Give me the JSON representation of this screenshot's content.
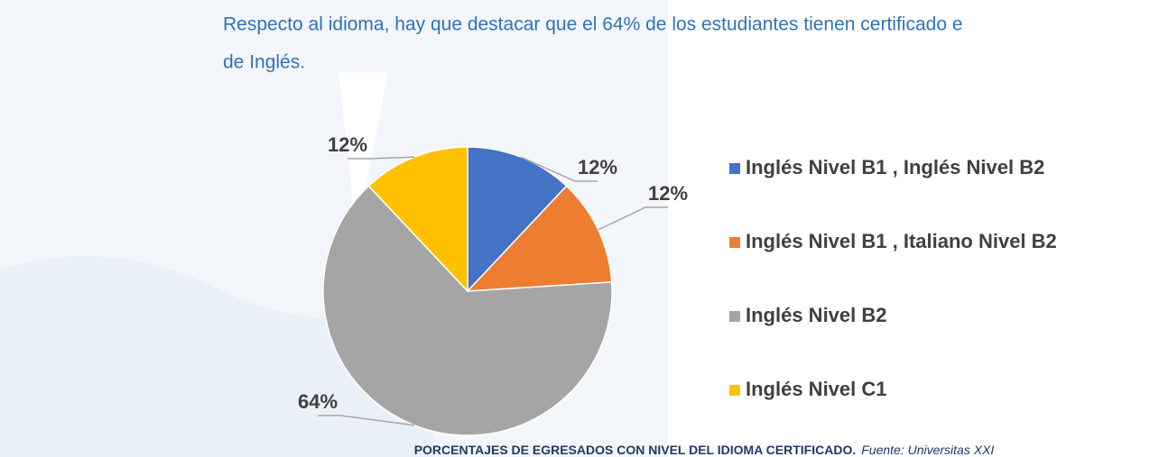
{
  "paragraph": {
    "lines": [
      "Respecto al idioma, hay que destacar que el 64% de los estudiantes tienen certificado e",
      "de Inglés."
    ]
  },
  "chart_data": {
    "type": "pie",
    "categories": [
      "Inglés Nivel B1 , Inglés Nivel B2",
      "Inglés Nivel B1 , Italiano Nivel B2",
      "Inglés Nivel B2",
      "Inglés Nivel C1"
    ],
    "values": [
      12,
      12,
      64,
      12
    ],
    "value_labels": [
      "12%",
      "12%",
      "64%",
      "12%"
    ],
    "colors": [
      "#4472c4",
      "#ed7d31",
      "#a5a5a5",
      "#ffc000"
    ],
    "legend": "right"
  },
  "caption": {
    "title": "PORCENTAJES DE EGRESADOS CON NIVEL DEL IDIOMA CERTIFICADO.",
    "source": "Fuente: Universitas XXI"
  }
}
